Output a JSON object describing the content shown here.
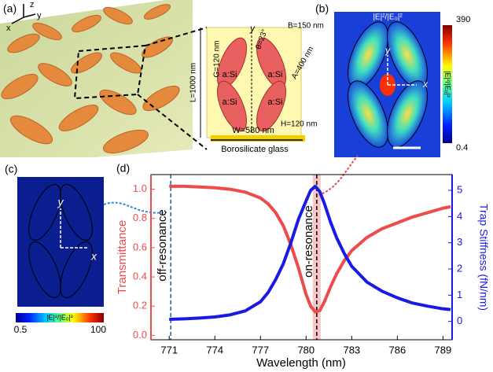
{
  "chart_data": {
    "type": "line",
    "xlabel": "Wavelength (nm)",
    "ylabel": "Transmittance",
    "y2label": "Trap Stiffness (fN/nm)",
    "x": [
      771,
      772,
      773,
      774,
      775,
      776,
      777,
      777.5,
      778,
      778.5,
      779,
      779.5,
      780,
      780.3,
      780.6,
      780.9,
      781.2,
      781.6,
      782,
      782.5,
      783,
      784,
      785,
      786,
      787,
      788,
      789,
      789.5
    ],
    "series": [
      {
        "color": "#ef4b4b",
        "values": [
          1.02,
          1.02,
          1.015,
          1.01,
          1.0,
          0.98,
          0.94,
          0.9,
          0.84,
          0.75,
          0.62,
          0.46,
          0.28,
          0.2,
          0.16,
          0.17,
          0.23,
          0.33,
          0.42,
          0.51,
          0.58,
          0.67,
          0.73,
          0.77,
          0.81,
          0.84,
          0.87,
          0.88
        ]
      },
      {
        "color": "#1a1ae6",
        "axis": "y2",
        "values": [
          0.08,
          0.1,
          0.13,
          0.17,
          0.25,
          0.4,
          0.75,
          1.1,
          1.6,
          2.2,
          3.0,
          3.9,
          4.6,
          5.0,
          5.15,
          4.95,
          4.5,
          3.8,
          3.2,
          2.6,
          2.1,
          1.5,
          1.15,
          0.9,
          0.7,
          0.58,
          0.48,
          0.45
        ]
      }
    ],
    "xlim": [
      769.8,
      789.6
    ],
    "xticks": [
      771,
      774,
      777,
      780,
      783,
      786,
      789
    ],
    "ylim": [
      -0.03,
      1.1
    ],
    "yticks": [
      {
        "value": 0,
        "label": "0.0"
      },
      0.2,
      0.4,
      0.6,
      0.8,
      {
        "value": 1,
        "label": "1.0"
      }
    ],
    "y2lim": [
      -0.7,
      5.6
    ],
    "y2ticks": [
      0,
      1,
      2,
      3,
      4,
      5
    ],
    "annotations": [
      {
        "text": "off-resonance",
        "x": 771.1
      },
      {
        "text": "on-resonance",
        "x": 780.7
      }
    ]
  },
  "figure": {
    "panel_labels": [
      "(a)",
      "(b)",
      "(c)",
      "(d)"
    ],
    "axes_a": [
      "z",
      "y",
      "x"
    ],
    "inset": {
      "y": "y",
      "L": "L=1000 nm",
      "G": "G=120 nm",
      "B": "B=150 nm",
      "theta": "θ=23°",
      "A": "A=400 nm",
      "H": "H=120 nm",
      "W": "W=580 nm",
      "substrate": "Borosilicate glass",
      "material": [
        "a:Si",
        "a:Si",
        "a:Si",
        "a:Si"
      ]
    },
    "panel_b": {
      "y": "y",
      "x": "x",
      "cbar_max": 390,
      "cbar_min": 0.4,
      "cbar_label": "|E|²/|E₀|²"
    },
    "panel_c": {
      "y": "y",
      "x": "x",
      "cbar_min": 0.5,
      "cbar_max": 100,
      "cbar_label": "|E|²/|E₀|²"
    }
  }
}
